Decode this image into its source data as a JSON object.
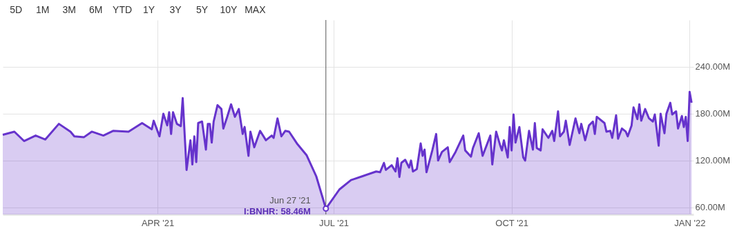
{
  "chart_data": {
    "type": "area",
    "x": [
      "2021-01-11",
      "2021-01-17",
      "2021-01-22",
      "2021-01-28",
      "2021-02-02",
      "2021-02-09",
      "2021-02-15",
      "2021-02-17",
      "2021-02-22",
      "2021-02-26",
      "2021-03-04",
      "2021-03-09",
      "2021-03-17",
      "2021-03-24",
      "2021-03-29",
      "2021-03-30",
      "2021-04-02",
      "2021-04-04",
      "2021-04-06",
      "2021-04-07",
      "2021-04-08",
      "2021-04-09",
      "2021-04-11",
      "2021-04-13",
      "2021-04-14",
      "2021-04-16",
      "2021-04-18",
      "2021-04-19",
      "2021-04-20",
      "2021-04-21",
      "2021-04-22",
      "2021-04-24",
      "2021-04-26",
      "2021-04-27",
      "2021-04-28",
      "2021-04-29",
      "2021-04-30",
      "2021-05-02",
      "2021-05-04",
      "2021-05-05",
      "2021-05-07",
      "2021-05-09",
      "2021-05-11",
      "2021-05-13",
      "2021-05-15",
      "2021-05-16",
      "2021-05-18",
      "2021-05-19",
      "2021-05-21",
      "2021-05-24",
      "2021-05-27",
      "2021-05-30",
      "2021-05-31",
      "2021-06-02",
      "2021-06-04",
      "2021-06-06",
      "2021-06-08",
      "2021-06-12",
      "2021-06-17",
      "2021-06-22",
      "2021-06-27",
      "2021-07-04",
      "2021-07-10",
      "2021-07-16",
      "2021-07-23",
      "2021-07-25",
      "2021-07-27",
      "2021-07-28",
      "2021-07-31",
      "2021-08-02",
      "2021-08-03",
      "2021-08-04",
      "2021-08-05",
      "2021-08-07",
      "2021-08-09",
      "2021-08-10",
      "2021-08-11",
      "2021-08-13",
      "2021-08-15",
      "2021-08-16",
      "2021-08-17",
      "2021-08-18",
      "2021-08-21",
      "2021-08-23",
      "2021-08-24",
      "2021-08-26",
      "2021-08-29",
      "2021-08-30",
      "2021-09-02",
      "2021-09-06",
      "2021-09-07",
      "2021-09-10",
      "2021-09-11",
      "2021-09-14",
      "2021-09-16",
      "2021-09-20",
      "2021-09-21",
      "2021-09-23",
      "2021-09-25",
      "2021-09-26",
      "2021-09-27",
      "2021-09-29",
      "2021-09-30",
      "2021-10-01",
      "2021-10-02",
      "2021-10-03",
      "2021-10-05",
      "2021-10-07",
      "2021-10-08",
      "2021-10-10",
      "2021-10-12",
      "2021-10-13",
      "2021-10-14",
      "2021-10-16",
      "2021-10-17",
      "2021-10-20",
      "2021-10-22",
      "2021-10-23",
      "2021-10-25",
      "2021-10-26",
      "2021-10-28",
      "2021-10-29",
      "2021-10-31",
      "2021-11-03",
      "2021-11-05",
      "2021-11-06",
      "2021-11-08",
      "2021-11-10",
      "2021-11-12",
      "2021-11-13",
      "2021-11-14",
      "2021-11-18",
      "2021-11-19",
      "2021-11-21",
      "2021-11-22",
      "2021-11-24",
      "2021-11-25",
      "2021-11-27",
      "2021-11-29",
      "2021-11-30",
      "2021-12-02",
      "2021-12-03",
      "2021-12-05",
      "2021-12-06",
      "2021-12-07",
      "2021-12-09",
      "2021-12-11",
      "2021-12-13",
      "2021-12-14",
      "2021-12-16",
      "2021-12-17",
      "2021-12-19",
      "2021-12-20",
      "2021-12-22",
      "2021-12-23",
      "2021-12-25",
      "2021-12-26",
      "2021-12-28",
      "2021-12-29",
      "2021-12-30",
      "2021-12-31",
      "2022-01-01",
      "2022-01-02"
    ],
    "series": [
      {
        "color": "#6633cc",
        "values": [
          153,
          157,
          145,
          152,
          147,
          167,
          157,
          151,
          150,
          157,
          152,
          158,
          157,
          168,
          160,
          171,
          151,
          180,
          165,
          182,
          154,
          182,
          167,
          164,
          200,
          108,
          146,
          115,
          151,
          118,
          168,
          170,
          134,
          167,
          167,
          143,
          170,
          191,
          186,
          161,
          176,
          192,
          176,
          186,
          154,
          163,
          126,
          157,
          137,
          158,
          146,
          152,
          149,
          174,
          151,
          158,
          157,
          142,
          127,
          100,
          58.46,
          83,
          95,
          100,
          106,
          105,
          117,
          108,
          114,
          106,
          123,
          99,
          117,
          121,
          111,
          120,
          106,
          109,
          142,
          126,
          134,
          105,
          133,
          154,
          120,
          131,
          137,
          118,
          131,
          152,
          133,
          125,
          136,
          155,
          126,
          152,
          115,
          157,
          140,
          133,
          146,
          124,
          163,
          133,
          179,
          143,
          163,
          124,
          120,
          158,
          134,
          168,
          136,
          133,
          160,
          149,
          158,
          145,
          183,
          151,
          157,
          171,
          140,
          174,
          155,
          167,
          146,
          165,
          170,
          154,
          176,
          168,
          157,
          158,
          149,
          178,
          148,
          161,
          157,
          151,
          165,
          188,
          173,
          192,
          171,
          186,
          174,
          170,
          179,
          139,
          180,
          155,
          180,
          194,
          179,
          183,
          161,
          177,
          163,
          176,
          145,
          208,
          194
        ]
      }
    ],
    "xlim": [
      "2021-01-11",
      "2022-01-03"
    ],
    "xticks": [
      {
        "value": "2021-04-01",
        "label": "APR '21"
      },
      {
        "value": "2021-07-01",
        "label": "JUL '21"
      },
      {
        "value": "2021-10-01",
        "label": "OCT '21"
      },
      {
        "value": "2022-01-01",
        "label": "JAN '22"
      }
    ],
    "ylim": [
      51,
      300
    ],
    "yticks": [
      {
        "value": 60,
        "label": "60.00M"
      },
      {
        "value": 120,
        "label": "120.00M"
      },
      {
        "value": 180,
        "label": "180.00M"
      },
      {
        "value": 240,
        "label": "240.00M"
      }
    ],
    "grid": true,
    "ref_lines": [
      {
        "axis": "x",
        "value": "2021-06-27",
        "color": "#555555"
      }
    ],
    "annotations": [
      "5D",
      "1M",
      "3M",
      "6M",
      "YTD",
      "1Y",
      "3Y",
      "5Y",
      "10Y",
      "MAX",
      {
        "text": "Jun 27 '21\nI:BNHR: 58.46M",
        "x": "2021-06-27",
        "y": 58.46
      }
    ]
  }
}
